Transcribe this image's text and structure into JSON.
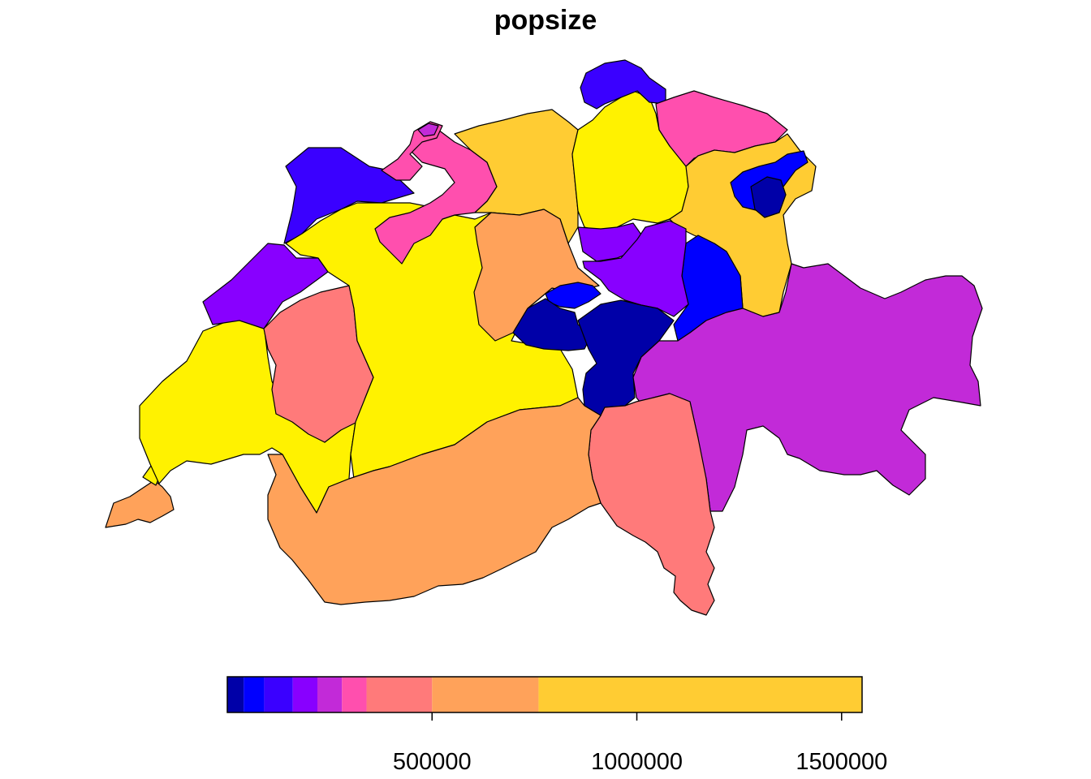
{
  "title": "popsize",
  "palette": {
    "c1": "#0000A8",
    "c2": "#0000FF",
    "c3": "#3A00FF",
    "c4": "#8800FF",
    "c5": "#C22AD8",
    "c6": "#FF4FAE",
    "c7": "#FF7A7A",
    "c8": "#FFA25A",
    "c9": "#FFCC33",
    "c10": "#FFF200"
  },
  "legend": {
    "ticks": [
      {
        "value": 500000,
        "label": "500000"
      },
      {
        "value": 1000000,
        "label": "1000000"
      },
      {
        "value": 1500000,
        "label": "1500000"
      }
    ],
    "range": [
      0,
      1550000
    ],
    "breaks": [
      0,
      40000,
      90000,
      160000,
      220000,
      280000,
      340000,
      500000,
      760000,
      1550000
    ],
    "colors": [
      "#0000A8",
      "#0000FF",
      "#3A00FF",
      "#8800FF",
      "#C22AD8",
      "#FF4FAE",
      "#FF7A7A",
      "#FFA25A",
      "#FFCC33",
      "#FFF200"
    ]
  }
}
